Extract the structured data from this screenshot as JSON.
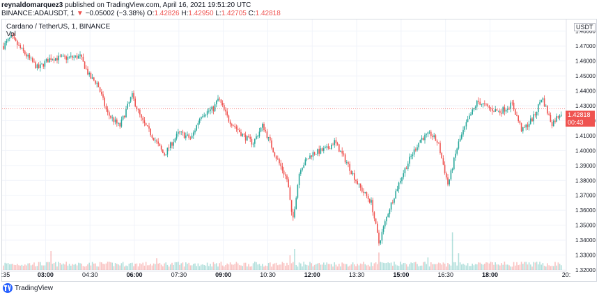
{
  "header": {
    "author": "reynaldomarquez3",
    "published_text": "published on TradingView.com, April 16, 2021 19:51:20 UTC",
    "symbol": "BINANCE:ADAUSDT, 1",
    "change_arrow": "▼",
    "change_text": "−0.05002 (−3.38%)",
    "o_label": "O:",
    "o_value": "1.42826",
    "h_label": "H:",
    "h_value": "1.42950",
    "l_label": "L:",
    "l_value": "1.42705",
    "c_label": "C:",
    "c_value": "1.42818"
  },
  "chart_title": "Cardano / TetherUS, 1, BINANCE",
  "volume_label": "Vol",
  "currency": "USDT",
  "last_price": "1.42818",
  "countdown": "00:43",
  "footer_brand": "TradingView",
  "colors": {
    "up": "#26a69a",
    "down": "#ef5350",
    "grid": "#f0f3fa",
    "axis_text": "#131722"
  },
  "chart_data": {
    "type": "candlestick",
    "title": "Cardano / TetherUS, 1, BINANCE",
    "y_ticks": [
      "1.48000",
      "1.47000",
      "1.46000",
      "1.45000",
      "1.44000",
      "1.43000",
      "1.42000",
      "1.41000",
      "1.40000",
      "1.39000",
      "1.38000",
      "1.37000",
      "1.36000",
      "1.35000",
      "1.34000",
      "1.33000",
      "1.32000"
    ],
    "y_range": [
      1.32,
      1.485
    ],
    "x_ticks": [
      ":35",
      "03:00",
      "04:30",
      "06:00",
      "07:30",
      "09:00",
      "10:30",
      "12:00",
      "13:30",
      "15:00",
      "16:30",
      "18:00",
      "20:"
    ],
    "x_ticks_bold": [
      "03:00",
      "06:00",
      "09:00",
      "12:00",
      "15:00",
      "18:00"
    ],
    "approx_close_path": [
      {
        "t": "01:35",
        "price": 1.47
      },
      {
        "t": "01:50",
        "price": 1.476
      },
      {
        "t": "02:15",
        "price": 1.466
      },
      {
        "t": "02:45",
        "price": 1.455
      },
      {
        "t": "03:10",
        "price": 1.462
      },
      {
        "t": "03:40",
        "price": 1.462
      },
      {
        "t": "04:10",
        "price": 1.463
      },
      {
        "t": "04:30",
        "price": 1.449
      },
      {
        "t": "04:45",
        "price": 1.445
      },
      {
        "t": "05:05",
        "price": 1.425
      },
      {
        "t": "05:30",
        "price": 1.416
      },
      {
        "t": "05:55",
        "price": 1.437
      },
      {
        "t": "06:15",
        "price": 1.42
      },
      {
        "t": "06:40",
        "price": 1.408
      },
      {
        "t": "07:00",
        "price": 1.397
      },
      {
        "t": "07:30",
        "price": 1.412
      },
      {
        "t": "07:55",
        "price": 1.408
      },
      {
        "t": "08:15",
        "price": 1.424
      },
      {
        "t": "08:40",
        "price": 1.428
      },
      {
        "t": "08:50",
        "price": 1.435
      },
      {
        "t": "09:10",
        "price": 1.421
      },
      {
        "t": "09:40",
        "price": 1.41
      },
      {
        "t": "10:00",
        "price": 1.405
      },
      {
        "t": "10:20",
        "price": 1.417
      },
      {
        "t": "10:45",
        "price": 1.397
      },
      {
        "t": "11:10",
        "price": 1.38
      },
      {
        "t": "11:20",
        "price": 1.352
      },
      {
        "t": "11:35",
        "price": 1.388
      },
      {
        "t": "12:00",
        "price": 1.398
      },
      {
        "t": "12:30",
        "price": 1.401
      },
      {
        "t": "12:45",
        "price": 1.406
      },
      {
        "t": "13:10",
        "price": 1.392
      },
      {
        "t": "13:35",
        "price": 1.376
      },
      {
        "t": "14:00",
        "price": 1.365
      },
      {
        "t": "14:15",
        "price": 1.338
      },
      {
        "t": "14:35",
        "price": 1.36
      },
      {
        "t": "15:00",
        "price": 1.382
      },
      {
        "t": "15:20",
        "price": 1.396
      },
      {
        "t": "15:40",
        "price": 1.408
      },
      {
        "t": "16:00",
        "price": 1.411
      },
      {
        "t": "16:15",
        "price": 1.405
      },
      {
        "t": "16:35",
        "price": 1.377
      },
      {
        "t": "16:55",
        "price": 1.404
      },
      {
        "t": "17:15",
        "price": 1.42
      },
      {
        "t": "17:35",
        "price": 1.433
      },
      {
        "t": "18:00",
        "price": 1.428
      },
      {
        "t": "18:20",
        "price": 1.426
      },
      {
        "t": "18:45",
        "price": 1.431
      },
      {
        "t": "19:05",
        "price": 1.413
      },
      {
        "t": "19:30",
        "price": 1.423
      },
      {
        "t": "19:45",
        "price": 1.436
      },
      {
        "t": "20:05",
        "price": 1.418
      },
      {
        "t": "20:20",
        "price": 1.424
      },
      {
        "t": "20:30",
        "price": 1.428
      }
    ],
    "last_price": 1.42818,
    "volume_spikes": [
      {
        "t": "03:10",
        "relative": 0.45
      },
      {
        "t": "06:45",
        "relative": 0.28
      },
      {
        "t": "11:15",
        "relative": 0.35
      },
      {
        "t": "11:25",
        "relative": 0.5
      },
      {
        "t": "14:15",
        "relative": 0.42
      },
      {
        "t": "16:45",
        "relative": 0.9
      },
      {
        "t": "16:55",
        "relative": 0.4
      },
      {
        "t": "15:55",
        "relative": 0.3
      }
    ]
  }
}
